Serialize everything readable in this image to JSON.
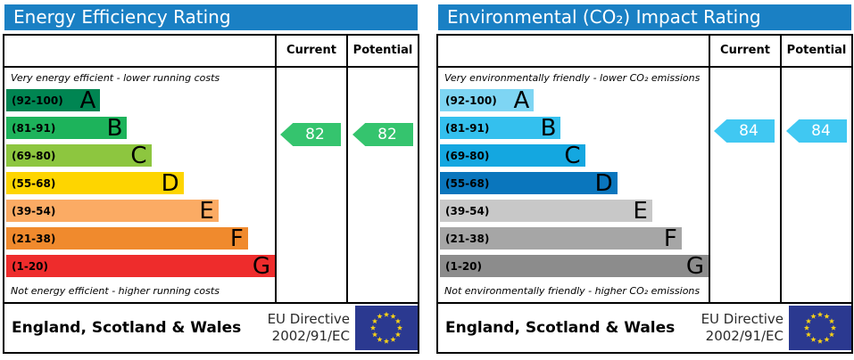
{
  "colors": {
    "title_bar": "#1a80c4",
    "eu_flag_background": "#2b3990",
    "eu_flag_star": "#f7d117"
  },
  "chart_data": [
    {
      "type": "epc_rating_bands",
      "title": "Energy Efficiency Rating",
      "column_headers": [
        "Current",
        "Potential"
      ],
      "top_note": "Very energy efficient - lower running costs",
      "bottom_note": "Not energy efficient - higher running costs",
      "current": 82,
      "potential": 82,
      "arrow_color": "#35c46e",
      "value_range": [
        1,
        100
      ],
      "bands": [
        {
          "letter": "A",
          "range_label": "(92-100)",
          "min": 92,
          "max": 100,
          "color": "#008552",
          "width_pct": 35
        },
        {
          "letter": "B",
          "range_label": "(81-91)",
          "min": 81,
          "max": 91,
          "color": "#1db35b",
          "width_pct": 45
        },
        {
          "letter": "C",
          "range_label": "(69-80)",
          "min": 69,
          "max": 80,
          "color": "#8dc63f",
          "width_pct": 54
        },
        {
          "letter": "D",
          "range_label": "(55-68)",
          "min": 55,
          "max": 68,
          "color": "#fed500",
          "width_pct": 66
        },
        {
          "letter": "E",
          "range_label": "(39-54)",
          "min": 39,
          "max": 54,
          "color": "#fbab64",
          "width_pct": 79
        },
        {
          "letter": "F",
          "range_label": "(21-38)",
          "min": 21,
          "max": 38,
          "color": "#f08a2d",
          "width_pct": 90
        },
        {
          "letter": "G",
          "range_label": "(1-20)",
          "min": 1,
          "max": 20,
          "color": "#ee2c2c",
          "width_pct": 100
        }
      ],
      "footer": {
        "region": "England, Scotland & Wales",
        "directive": [
          "EU Directive",
          "2002/91/EC"
        ]
      }
    },
    {
      "type": "epc_rating_bands",
      "title": "Environmental (CO₂) Impact Rating",
      "column_headers": [
        "Current",
        "Potential"
      ],
      "top_note": "Very environmentally friendly - lower CO₂ emissions",
      "bottom_note": "Not environmentally friendly - higher CO₂ emissions",
      "current": 84,
      "potential": 84,
      "arrow_color": "#40c8f2",
      "value_range": [
        1,
        100
      ],
      "bands": [
        {
          "letter": "A",
          "range_label": "(92-100)",
          "min": 92,
          "max": 100,
          "color": "#7ed5f3",
          "width_pct": 35
        },
        {
          "letter": "B",
          "range_label": "(81-91)",
          "min": 81,
          "max": 91,
          "color": "#34c0ee",
          "width_pct": 45
        },
        {
          "letter": "C",
          "range_label": "(69-80)",
          "min": 69,
          "max": 80,
          "color": "#14a7e0",
          "width_pct": 54
        },
        {
          "letter": "D",
          "range_label": "(55-68)",
          "min": 55,
          "max": 68,
          "color": "#0a76bd",
          "width_pct": 66
        },
        {
          "letter": "E",
          "range_label": "(39-54)",
          "min": 39,
          "max": 54,
          "color": "#c8c8c8",
          "width_pct": 79
        },
        {
          "letter": "F",
          "range_label": "(21-38)",
          "min": 21,
          "max": 38,
          "color": "#a6a6a6",
          "width_pct": 90
        },
        {
          "letter": "G",
          "range_label": "(1-20)",
          "min": 1,
          "max": 20,
          "color": "#8c8c8c",
          "width_pct": 100
        }
      ],
      "footer": {
        "region": "England, Scotland & Wales",
        "directive": [
          "EU Directive",
          "2002/91/EC"
        ]
      }
    }
  ]
}
